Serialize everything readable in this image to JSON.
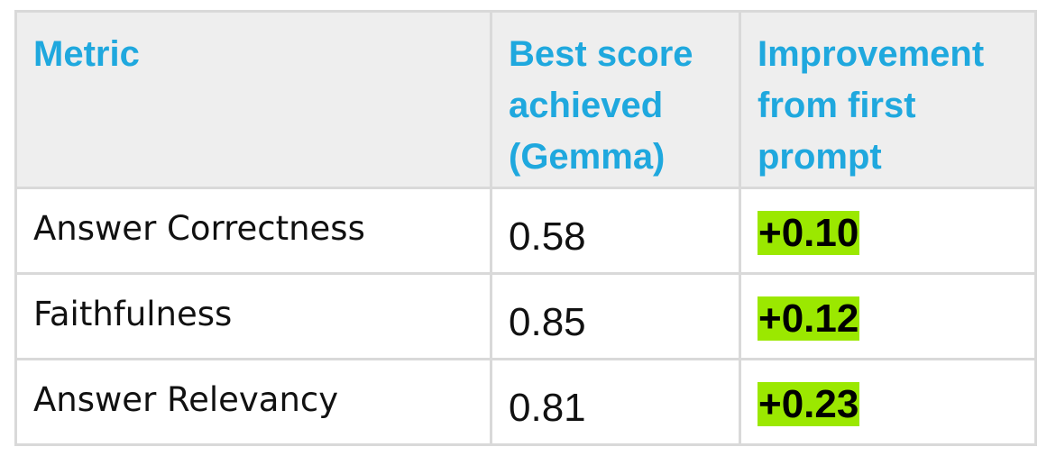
{
  "table": {
    "header": [
      "Metric",
      "Best score achieved (Gemma)",
      "Improvement from first prompt"
    ],
    "rows": [
      [
        "Answer Correctness",
        "0.58",
        "+0.10"
      ],
      [
        "Faithfulness",
        "0.85",
        "+0.12"
      ],
      [
        "Answer Relevancy",
        "0.81",
        "+0.23"
      ]
    ]
  }
}
